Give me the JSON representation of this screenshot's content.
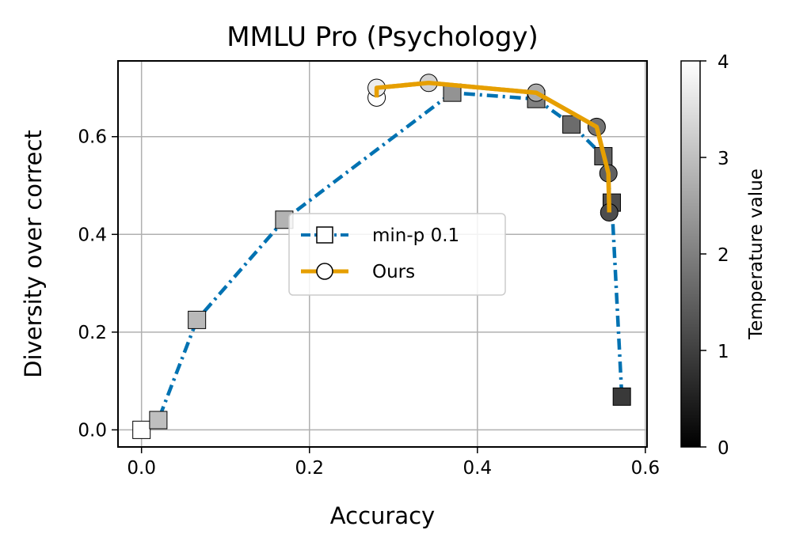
{
  "chart_data": {
    "type": "line",
    "title": "MMLU Pro (Psychology)",
    "xlabel": "Accuracy",
    "ylabel": "Diversity over correct",
    "xlim": [
      -0.028,
      0.602
    ],
    "ylim": [
      -0.035,
      0.755
    ],
    "xticks": [
      "0.0",
      "0.2",
      "0.4",
      "0.6"
    ],
    "xtick_values": [
      0.0,
      0.2,
      0.4,
      0.6
    ],
    "yticks": [
      "0.0",
      "0.2",
      "0.4",
      "0.6"
    ],
    "ytick_values": [
      0.0,
      0.2,
      0.4,
      0.6
    ],
    "grid": true,
    "legend_position": "center",
    "series": [
      {
        "name": "min-p 0.1",
        "color": "#0072b2",
        "line_style": "dash-dot",
        "marker": "square",
        "points": [
          {
            "x": 0.0,
            "y": 0.0,
            "temperature": 4.0
          },
          {
            "x": 0.02,
            "y": 0.02,
            "temperature": 3.0
          },
          {
            "x": 0.066,
            "y": 0.225,
            "temperature": 2.9
          },
          {
            "x": 0.17,
            "y": 0.43,
            "temperature": 2.8
          },
          {
            "x": 0.37,
            "y": 0.69,
            "temperature": 2.3
          },
          {
            "x": 0.47,
            "y": 0.677,
            "temperature": 2.0
          },
          {
            "x": 0.512,
            "y": 0.625,
            "temperature": 1.7
          },
          {
            "x": 0.55,
            "y": 0.56,
            "temperature": 1.5
          },
          {
            "x": 0.56,
            "y": 0.465,
            "temperature": 1.2
          },
          {
            "x": 0.572,
            "y": 0.068,
            "temperature": 0.9
          }
        ]
      },
      {
        "name": "Ours",
        "color": "#e69f00",
        "line_style": "solid",
        "marker": "circle",
        "points": [
          {
            "x": 0.28,
            "y": 0.68,
            "temperature": 4.0
          },
          {
            "x": 0.28,
            "y": 0.7,
            "temperature": 3.7
          },
          {
            "x": 0.342,
            "y": 0.71,
            "temperature": 3.3
          },
          {
            "x": 0.47,
            "y": 0.69,
            "temperature": 2.7
          },
          {
            "x": 0.542,
            "y": 0.62,
            "temperature": 1.8
          },
          {
            "x": 0.556,
            "y": 0.525,
            "temperature": 1.5
          },
          {
            "x": 0.557,
            "y": 0.445,
            "temperature": 1.2
          }
        ]
      }
    ],
    "colorbar": {
      "label": "Temperature value",
      "range": [
        0,
        4
      ],
      "ticks": [
        "0",
        "1",
        "2",
        "3",
        "4"
      ],
      "tick_values": [
        0,
        1,
        2,
        3,
        4
      ],
      "colormap": "gray"
    }
  }
}
